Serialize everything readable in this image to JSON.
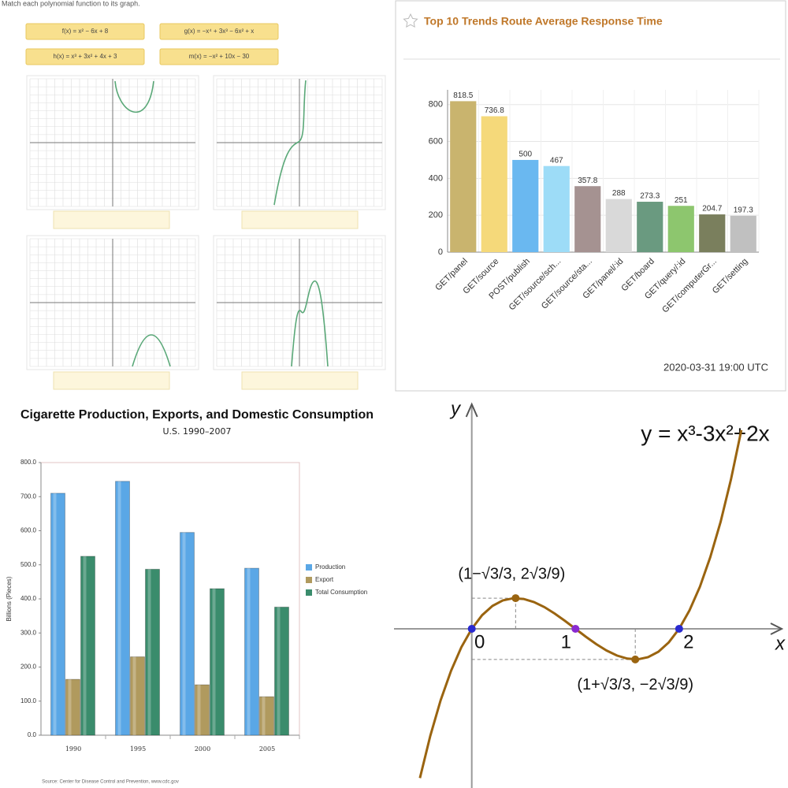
{
  "worksheet": {
    "instruction": "Match each polynomial function to its graph.",
    "functions": [
      "f(x) = x² − 6x + 8",
      "g(x) = −x⁴ + 3x³ − 6x² + x",
      "h(x) = x³ + 3x² + 4x + 3",
      "m(x) = −x² + 10x − 30"
    ]
  },
  "chart_data": [
    {
      "type": "bar",
      "title": "Top 10 Trends Route Average Response Time",
      "categories": [
        "GET/panel",
        "GET/source",
        "POST/publish",
        "GET/source/sch...",
        "GET/source/sta...",
        "GET/panel/:id",
        "GET/board",
        "GET/query/:id",
        "GET/computerGr...",
        "GET/setting"
      ],
      "values": [
        818.5,
        736.8,
        500,
        467,
        357.8,
        288,
        273.3,
        251,
        204.7,
        197.3
      ],
      "colors": [
        "#c9b46e",
        "#f5d97a",
        "#6ab8f0",
        "#9ddcf7",
        "#a59291",
        "#d9d9d9",
        "#6a9a80",
        "#8dc66e",
        "#7a7f5d",
        "#c0c0c0"
      ],
      "ylim": [
        0,
        880
      ],
      "yticks": [
        0,
        200,
        400,
        600,
        800
      ],
      "grid": true,
      "footer": "2020-03-31 19:00 UTC"
    },
    {
      "type": "bar",
      "title": "Cigarette Production, Exports, and Domestic Consumption",
      "subtitle": "U.S. 1990–2007",
      "y_label": "Billions (Pieces)",
      "categories": [
        "1990",
        "1995",
        "2000",
        "2005"
      ],
      "series": [
        {
          "name": "Production",
          "color": "#5aa7e6",
          "values": [
            710,
            745,
            595,
            490
          ]
        },
        {
          "name": "Export",
          "color": "#b09a5e",
          "values": [
            164,
            230,
            148,
            113
          ]
        },
        {
          "name": "Total Consumption",
          "color": "#3a8c6c",
          "values": [
            525,
            487,
            430,
            376
          ]
        }
      ],
      "ylim": [
        0,
        800
      ],
      "yticks": [
        {
          "value": 0,
          "label": "0.0"
        },
        {
          "value": 100,
          "label": "100.0"
        },
        {
          "value": 200,
          "label": "200.0"
        },
        {
          "value": 300,
          "label": "300.0"
        },
        {
          "value": 400,
          "label": "400.0"
        },
        {
          "value": 500,
          "label": "500.0"
        },
        {
          "value": 600,
          "label": "600.0"
        },
        {
          "value": 700,
          "label": "700.0"
        },
        {
          "value": 800,
          "label": "800.0"
        }
      ],
      "grid": false,
      "legend": "right",
      "source": "Source: Center for Disease Control and Prevention, www.cdc.gov"
    },
    {
      "type": "line",
      "title": "y = x³-3x²+2x",
      "x_label": "x",
      "y_label": "y",
      "color": "#9a6410",
      "x": [
        -0.5,
        -0.4,
        -0.3,
        -0.2,
        -0.1,
        0,
        0.1,
        0.2,
        0.3,
        0.4,
        0.5,
        0.6,
        0.7,
        0.8,
        0.9,
        1.0,
        1.1,
        1.2,
        1.3,
        1.4,
        1.5,
        1.6,
        1.7,
        1.8,
        1.9,
        2.0,
        2.1,
        2.2,
        2.3,
        2.4,
        2.5,
        2.6
      ],
      "values": [
        -1.875,
        -1.344,
        -0.897,
        -0.528,
        -0.231,
        0,
        0.171,
        0.288,
        0.357,
        0.384,
        0.375,
        0.336,
        0.273,
        0.192,
        0.099,
        0,
        -0.099,
        -0.192,
        -0.273,
        -0.336,
        -0.375,
        -0.384,
        -0.357,
        -0.288,
        -0.171,
        0,
        0.231,
        0.528,
        0.897,
        1.344,
        1.875,
        2.496
      ],
      "xlim": [
        -0.75,
        3.05
      ],
      "ylim": [
        -2,
        2.9
      ],
      "xticks": [
        0,
        1,
        2
      ],
      "markers": {
        "x": [
          0,
          1,
          2,
          0.423,
          1.577
        ],
        "y": [
          0,
          0,
          0,
          0.385,
          -0.385
        ],
        "colors": [
          "#2a2ad0",
          "#8a2ad0",
          "#2a2ad0",
          "#9a6410",
          "#9a6410"
        ]
      },
      "annotations": [
        "(1−√3/3, 2√3/9)",
        "(1+√3/3, −2√3/9)"
      ]
    }
  ]
}
